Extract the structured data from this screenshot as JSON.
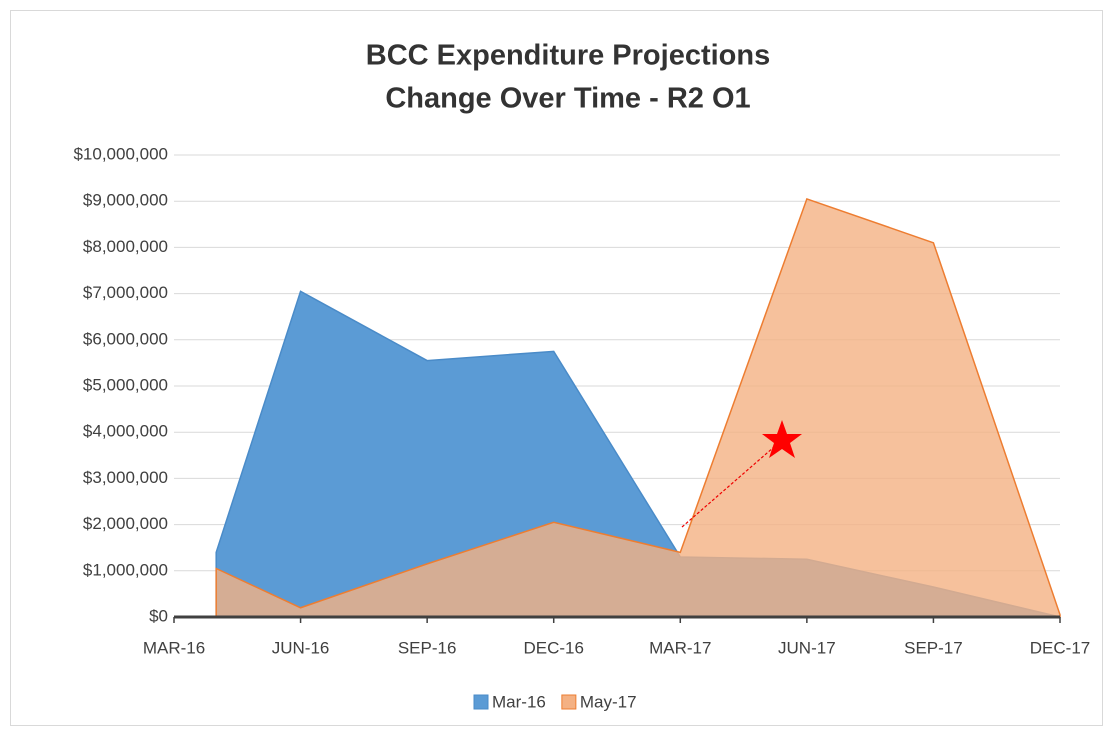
{
  "chart_data": {
    "type": "area",
    "title": [
      "BCC Expenditure Projections",
      "Change Over Time - R2 O1"
    ],
    "x": [
      "2016-04",
      "2016-06",
      "2016-09",
      "2016-12",
      "2017-03",
      "2017-06",
      "2017-09",
      "2017-12"
    ],
    "series": [
      {
        "name": "Mar-16",
        "color": "#5b9bd5",
        "values": [
          1400000,
          7050000,
          5550000,
          5750000,
          1300000,
          1250000,
          650000,
          0
        ]
      },
      {
        "name": "May-17",
        "color": "#f4b183",
        "values": [
          1050000,
          200000,
          1150000,
          2050000,
          1400000,
          9050000,
          8100000,
          50000
        ]
      }
    ],
    "xlim": [
      "2016-03",
      "2017-12"
    ],
    "xticks": [
      {
        "value": "2016-03",
        "label": "MAR-16"
      },
      {
        "value": "2016-06",
        "label": "JUN-16"
      },
      {
        "value": "2016-09",
        "label": "SEP-16"
      },
      {
        "value": "2016-12",
        "label": "DEC-16"
      },
      {
        "value": "2017-03",
        "label": "MAR-17"
      },
      {
        "value": "2017-06",
        "label": "JUN-17"
      },
      {
        "value": "2017-09",
        "label": "SEP-17"
      },
      {
        "value": "2017-12",
        "label": "DEC-17"
      }
    ],
    "ylim": [
      0,
      10000000
    ],
    "yticks": [
      {
        "value": 0,
        "label": "$0"
      },
      {
        "value": 1000000,
        "label": "$1,000,000"
      },
      {
        "value": 2000000,
        "label": "$2,000,000"
      },
      {
        "value": 3000000,
        "label": "$3,000,000"
      },
      {
        "value": 4000000,
        "label": "$4,000,000"
      },
      {
        "value": 5000000,
        "label": "$5,000,000"
      },
      {
        "value": 6000000,
        "label": "$6,000,000"
      },
      {
        "value": 7000000,
        "label": "$7,000,000"
      },
      {
        "value": 8000000,
        "label": "$8,000,000"
      },
      {
        "value": 9000000,
        "label": "$9,000,000"
      },
      {
        "value": 10000000,
        "label": "$10,000,000"
      }
    ],
    "grid": true,
    "legend": "bottom"
  }
}
